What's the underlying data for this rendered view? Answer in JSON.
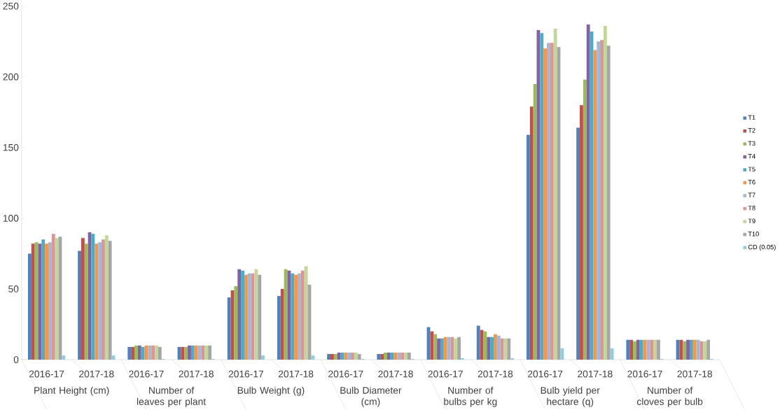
{
  "chart_data": {
    "type": "bar",
    "categories": [
      "2016-17",
      "2017-18",
      "2016-17",
      "2017-18",
      "2016-17",
      "2017-18",
      "2016-17",
      "2017-18",
      "2016-17",
      "2017-18",
      "2016-17",
      "2017-18",
      "2016-17",
      "2017-18"
    ],
    "annotations": [
      "Plant Height (cm)",
      "Number of leaves per plant",
      "Bulb Weight (g)",
      "Bulb Diameter (cm)",
      "Number of bulbs per kg",
      "Bulb yield per hectare (q)",
      "Number of cloves per bulb"
    ],
    "series": [
      {
        "name": "T1",
        "color": "#4f81bd",
        "values": [
          75,
          77,
          9,
          9,
          44,
          45,
          4,
          4,
          23,
          24,
          159,
          164,
          14,
          14
        ]
      },
      {
        "name": "T2",
        "color": "#c0504d",
        "values": [
          82,
          86,
          9,
          9,
          49,
          50,
          4,
          4,
          20,
          21,
          179,
          180,
          14,
          14
        ]
      },
      {
        "name": "T3",
        "color": "#9bbb59",
        "values": [
          83,
          82,
          10,
          9,
          52,
          64,
          4,
          5,
          18,
          20,
          195,
          198,
          13,
          13
        ]
      },
      {
        "name": "T4",
        "color": "#8064a2",
        "values": [
          82,
          90,
          10,
          10,
          64,
          63,
          5,
          5,
          15,
          16,
          233,
          237,
          14,
          14
        ]
      },
      {
        "name": "T5",
        "color": "#4bacc6",
        "values": [
          85,
          89,
          9,
          10,
          63,
          61,
          5,
          5,
          15,
          16,
          231,
          232,
          14,
          14
        ]
      },
      {
        "name": "T6",
        "color": "#f79646",
        "values": [
          82,
          82,
          10,
          10,
          60,
          60,
          5,
          5,
          16,
          18,
          220,
          219,
          14,
          14
        ]
      },
      {
        "name": "T7",
        "color": "#a5b6d6",
        "values": [
          83,
          83,
          10,
          10,
          61,
          61,
          5,
          5,
          16,
          17,
          224,
          225,
          14,
          14
        ]
      },
      {
        "name": "T8",
        "color": "#d99694",
        "values": [
          89,
          85,
          10,
          10,
          61,
          63,
          5,
          5,
          16,
          15,
          224,
          226,
          14,
          13
        ]
      },
      {
        "name": "T9",
        "color": "#c3d69b",
        "values": [
          86,
          88,
          10,
          10,
          64,
          66,
          5,
          5,
          15,
          15,
          234,
          236,
          14,
          13
        ]
      },
      {
        "name": "T10",
        "color": "#a6a6a6",
        "values": [
          87,
          84,
          9,
          10,
          60,
          53,
          4,
          5,
          16,
          15,
          221,
          222,
          14,
          14
        ]
      },
      {
        "name": "CD (0.05)",
        "color": "#93cddd",
        "values": [
          3,
          3,
          0.5,
          0.5,
          3,
          3,
          0.5,
          0.5,
          1,
          1,
          8,
          8,
          0.5,
          0.5
        ]
      }
    ],
    "ylim": [
      0,
      250
    ],
    "yticks": [
      0,
      50,
      100,
      150,
      200,
      250
    ],
    "legend": "right",
    "grid": false
  }
}
